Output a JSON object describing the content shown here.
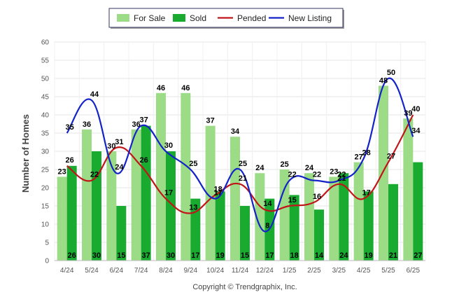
{
  "chart_data": {
    "type": "bar",
    "categories": [
      "4/24",
      "5/24",
      "6/24",
      "7/24",
      "8/24",
      "9/24",
      "10/24",
      "11/24",
      "12/24",
      "1/25",
      "2/25",
      "3/25",
      "4/25",
      "5/25",
      "6/25"
    ],
    "series": [
      {
        "name": "For Sale",
        "kind": "bar",
        "color": "#9ddc87",
        "values": [
          23,
          36,
          30,
          36,
          46,
          46,
          37,
          34,
          24,
          25,
          24,
          23,
          27,
          48,
          39
        ]
      },
      {
        "name": "Sold",
        "kind": "bar",
        "color": "#19ab2f",
        "values": [
          26,
          30,
          15,
          37,
          30,
          17,
          19,
          15,
          17,
          18,
          14,
          24,
          19,
          21,
          27
        ]
      },
      {
        "name": "Pended",
        "kind": "line",
        "color": "#c0161a",
        "values": [
          26,
          22,
          31,
          26,
          17,
          13,
          18,
          21,
          14,
          15,
          16,
          21,
          17,
          27,
          40
        ]
      },
      {
        "name": "New Listing",
        "kind": "line",
        "color": "#1423c8",
        "values": [
          35,
          44,
          24,
          37,
          30,
          25,
          17,
          25,
          8,
          22,
          22,
          22,
          28,
          50,
          34
        ]
      }
    ],
    "ylabel": "Number of Homes",
    "ylim": [
      0,
      60
    ],
    "yticks": [
      0,
      5,
      10,
      15,
      20,
      25,
      30,
      35,
      40,
      45,
      50,
      55,
      60
    ],
    "grid": true,
    "legend_position": "top-center",
    "footer": "Copyright © Trendgraphix, Inc."
  }
}
